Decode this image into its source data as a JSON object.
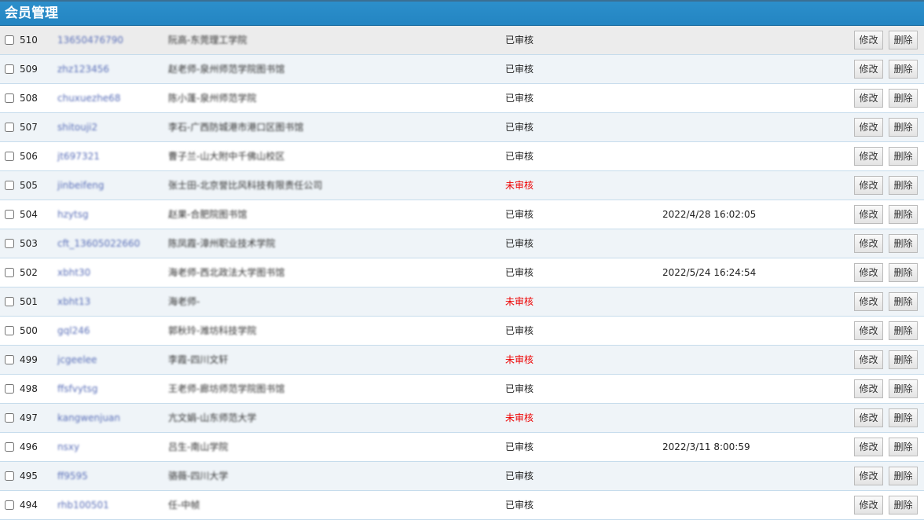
{
  "header": {
    "title": "会员管理"
  },
  "buttons": {
    "edit": "修改",
    "delete": "删除"
  },
  "rows": [
    {
      "id": "510",
      "user": "13650476790",
      "name": "阮高-东莞理工学院",
      "status": "已审核",
      "time": "",
      "approved": true
    },
    {
      "id": "509",
      "user": "zhz123456",
      "name": "赵老师-泉州师范学院图书馆",
      "status": "已审核",
      "time": "",
      "approved": true
    },
    {
      "id": "508",
      "user": "chuxuezhe68",
      "name": "陈小蓬-泉州师范学院",
      "status": "已审核",
      "time": "",
      "approved": true
    },
    {
      "id": "507",
      "user": "shitouji2",
      "name": "李石-广西防城港市港口区图书馆",
      "status": "已审核",
      "time": "",
      "approved": true
    },
    {
      "id": "506",
      "user": "jt697321",
      "name": "曹子兰-山大附中千佛山校区",
      "status": "已审核",
      "time": "",
      "approved": true
    },
    {
      "id": "505",
      "user": "jinbeifeng",
      "name": "张士田-北京誉比风科技有限责任公司",
      "status": "未审核",
      "time": "",
      "approved": false
    },
    {
      "id": "504",
      "user": "hzytsg",
      "name": "赵果-合肥院图书馆",
      "status": "已审核",
      "time": "2022/4/28 16:02:05",
      "approved": true
    },
    {
      "id": "503",
      "user": "cft_13605022660",
      "name": "陈凤霞-漳州职业技术学院",
      "status": "已审核",
      "time": "",
      "approved": true
    },
    {
      "id": "502",
      "user": "xbht30",
      "name": "海老师-西北政法大学图书馆",
      "status": "已审核",
      "time": "2022/5/24 16:24:54",
      "approved": true
    },
    {
      "id": "501",
      "user": "xbht13",
      "name": "海老师-",
      "status": "未审核",
      "time": "",
      "approved": false
    },
    {
      "id": "500",
      "user": "gql246",
      "name": "郭秋玲-潍坊科技学院",
      "status": "已审核",
      "time": "",
      "approved": true
    },
    {
      "id": "499",
      "user": "jcgeelee",
      "name": "李霞-四川文轩",
      "status": "未审核",
      "time": "",
      "approved": false
    },
    {
      "id": "498",
      "user": "ffsfvytsg",
      "name": "王老师-廊坊师范学院图书馆",
      "status": "已审核",
      "time": "",
      "approved": true
    },
    {
      "id": "497",
      "user": "kangwenjuan",
      "name": "亢文娟-山东师范大学",
      "status": "未审核",
      "time": "",
      "approved": false
    },
    {
      "id": "496",
      "user": "nsxy",
      "name": "吕生-南山学院",
      "status": "已审核",
      "time": "2022/3/11 8:00:59",
      "approved": true
    },
    {
      "id": "495",
      "user": "ff9595",
      "name": "骆薇-四川大学",
      "status": "已审核",
      "time": "",
      "approved": true
    },
    {
      "id": "494",
      "user": "rhb100501",
      "name": "任-中帧",
      "status": "已审核",
      "time": "",
      "approved": true
    }
  ]
}
